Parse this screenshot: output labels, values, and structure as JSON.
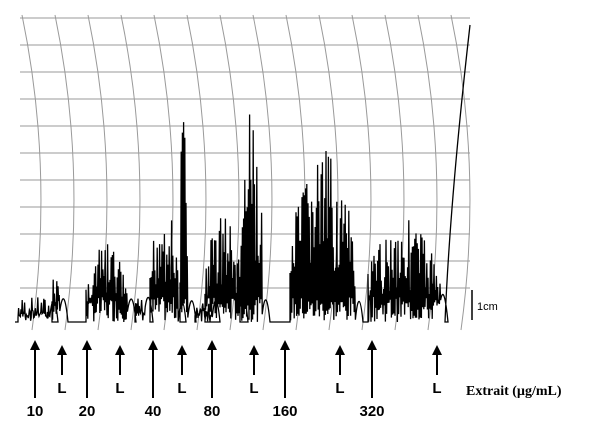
{
  "arrows": [
    {
      "label": "10"
    },
    {
      "label": "L"
    },
    {
      "label": "20"
    },
    {
      "label": "L"
    },
    {
      "label": "40"
    },
    {
      "label": "L"
    },
    {
      "label": "80"
    },
    {
      "label": "L"
    },
    {
      "label": "160"
    },
    {
      "label": "L"
    },
    {
      "label": "320"
    },
    {
      "label": "L"
    }
  ],
  "axis_label": "Extrait (µg/mL)",
  "scale_bar": "1cm"
}
